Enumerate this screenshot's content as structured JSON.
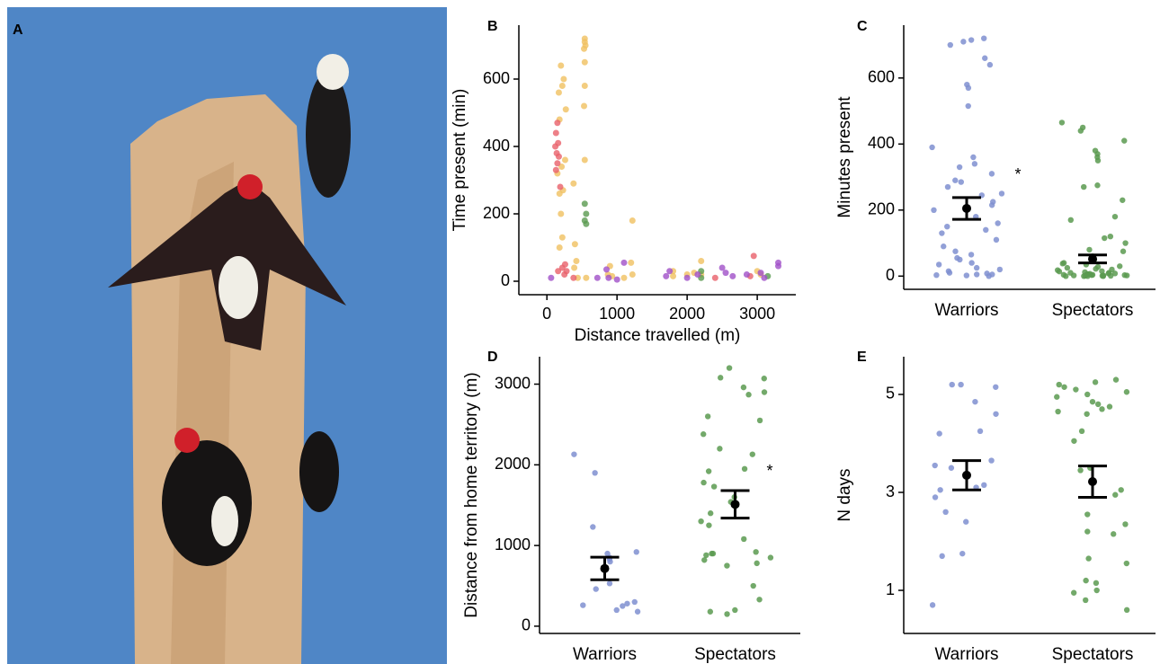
{
  "photo_label": "A",
  "chart_data": [
    {
      "type": "scatter",
      "panel": "B",
      "xlabel": "Distance travelled (m)",
      "ylabel": "Time present (min)",
      "xlim": [
        -400,
        3550
      ],
      "ylim": [
        -40,
        760
      ],
      "xticks": [
        0,
        1000,
        2000,
        3000
      ],
      "yticks": [
        0,
        200,
        400,
        600
      ],
      "series": [
        {
          "color": "#f0c060",
          "x": [
            200,
            240,
            220,
            170,
            270,
            180,
            260,
            210,
            150,
            230,
            180,
            200,
            220,
            180,
            380,
            400,
            420,
            390,
            440,
            540,
            540,
            550,
            530,
            540,
            540,
            530,
            540,
            560,
            1220,
            1200,
            1220,
            900,
            870,
            930,
            1800,
            1800,
            2000,
            2100,
            2200,
            2200,
            3000,
            3050,
            1100
          ],
          "y": [
            640,
            600,
            580,
            560,
            510,
            480,
            360,
            340,
            320,
            270,
            260,
            200,
            130,
            100,
            290,
            110,
            60,
            40,
            10,
            720,
            710,
            700,
            690,
            650,
            580,
            520,
            360,
            10,
            180,
            55,
            20,
            45,
            20,
            15,
            30,
            15,
            20,
            25,
            60,
            20,
            30,
            20,
            10
          ]
        },
        {
          "color": "#e8606a",
          "x": [
            150,
            130,
            160,
            120,
            140,
            170,
            150,
            130,
            190,
            160,
            220,
            260,
            280,
            380,
            2400,
            2950,
            2900,
            250
          ],
          "y": [
            470,
            440,
            410,
            400,
            380,
            370,
            350,
            330,
            280,
            30,
            40,
            50,
            30,
            10,
            10,
            75,
            15,
            20
          ]
        },
        {
          "color": "#5a9a50",
          "x": [
            540,
            560,
            540,
            560,
            2200,
            3150,
            2200
          ],
          "y": [
            230,
            200,
            180,
            170,
            30,
            15,
            10
          ]
        },
        {
          "color": "#a050c8",
          "x": [
            60,
            720,
            850,
            880,
            1000,
            1100,
            1700,
            1750,
            2150,
            2500,
            2550,
            2650,
            2850,
            3050,
            3300,
            3300,
            3100,
            2000
          ],
          "y": [
            10,
            10,
            35,
            10,
            5,
            55,
            15,
            30,
            20,
            40,
            25,
            15,
            20,
            25,
            45,
            55,
            10,
            10
          ]
        }
      ]
    },
    {
      "type": "strip",
      "panel": "C",
      "ylabel": "Minutes present",
      "annotation": "*",
      "categories": [
        "Warriors",
        "Spectators"
      ],
      "ylim": [
        -40,
        760
      ],
      "yticks": [
        0,
        200,
        400,
        600
      ],
      "series": [
        {
          "color": "#7f8fd0",
          "mean": 205,
          "se": 33,
          "values": [
            720,
            715,
            710,
            700,
            640,
            660,
            580,
            570,
            515,
            390,
            360,
            340,
            330,
            310,
            290,
            285,
            270,
            250,
            245,
            225,
            215,
            200,
            180,
            160,
            150,
            140,
            130,
            110,
            90,
            75,
            65,
            55,
            50,
            40,
            35,
            25,
            20,
            15,
            10,
            8,
            5,
            5,
            3,
            2,
            0
          ]
        },
        {
          "color": "#5a9a50",
          "mean": 52,
          "se": 12,
          "values": [
            465,
            450,
            440,
            410,
            380,
            370,
            360,
            350,
            275,
            270,
            230,
            180,
            170,
            120,
            115,
            100,
            80,
            75,
            60,
            50,
            45,
            40,
            38,
            35,
            30,
            28,
            25,
            22,
            20,
            18,
            15,
            14,
            12,
            10,
            10,
            8,
            8,
            7,
            6,
            5,
            5,
            4,
            4,
            3,
            3,
            2,
            2,
            2,
            1,
            1,
            1,
            0,
            0,
            0,
            0
          ]
        }
      ]
    },
    {
      "type": "strip",
      "panel": "D",
      "ylabel": "Distance from home territory (m)",
      "annotation": "*",
      "categories": [
        "Warriors",
        "Spectators"
      ],
      "ylim": [
        -90,
        3340
      ],
      "yticks": [
        0,
        1000,
        2000,
        3000
      ],
      "series": [
        {
          "color": "#7f8fd0",
          "mean": 715,
          "se": 140,
          "values": [
            2130,
            1900,
            1230,
            920,
            900,
            850,
            830,
            800,
            530,
            460,
            300,
            280,
            260,
            250,
            200,
            180
          ]
        },
        {
          "color": "#5a9a50",
          "mean": 1510,
          "se": 170,
          "values": [
            3200,
            3080,
            3070,
            2960,
            2900,
            2870,
            2600,
            2550,
            2380,
            2200,
            2130,
            1950,
            1920,
            1780,
            1730,
            1600,
            1540,
            1400,
            1300,
            1250,
            1080,
            920,
            900,
            900,
            880,
            850,
            820,
            780,
            750,
            500,
            330,
            200,
            180,
            150
          ]
        }
      ]
    },
    {
      "type": "strip",
      "panel": "E",
      "ylabel": "N days",
      "categories": [
        "Warriors",
        "Spectators"
      ],
      "ylim": [
        0.12,
        5.77
      ],
      "yticks": [
        1,
        3,
        5
      ],
      "series": [
        {
          "color": "#7f8fd0",
          "mean": 3.35,
          "se": 0.3,
          "values": [
            5.2,
            5.2,
            5.15,
            4.85,
            4.6,
            4.25,
            4.2,
            3.65,
            3.55,
            3.5,
            3.15,
            3.1,
            3.05,
            2.9,
            2.6,
            2.4,
            1.75,
            1.7,
            0.7
          ]
        },
        {
          "color": "#5a9a50",
          "mean": 3.22,
          "se": 0.32,
          "values": [
            5.3,
            5.25,
            5.2,
            5.15,
            5.1,
            5.05,
            5.0,
            4.95,
            4.85,
            4.8,
            4.75,
            4.7,
            4.65,
            4.6,
            4.25,
            4.05,
            3.5,
            3.45,
            3.05,
            2.95,
            2.55,
            2.35,
            2.2,
            2.15,
            1.65,
            1.55,
            1.2,
            1.15,
            1.0,
            0.95,
            0.8,
            0.6
          ]
        }
      ]
    }
  ]
}
